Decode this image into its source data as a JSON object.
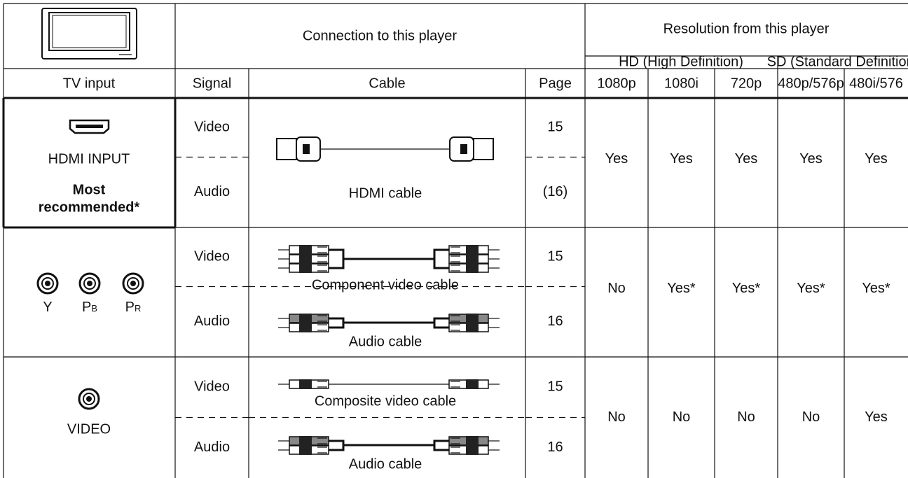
{
  "header": {
    "tv_input": "TV input",
    "connection": "Connection to this player",
    "resolution": "Resolution from this player",
    "hd": "HD (High Definition)",
    "sd": "SD (Standard Definition)",
    "columns": [
      "Signal",
      "Cable",
      "Page",
      "1080p",
      "1080i",
      "720p",
      "480p/576p",
      "480i/576"
    ]
  },
  "rows": [
    {
      "input": [
        "HDMI INPUT"
      ],
      "note": [
        "Most",
        "recommended*"
      ],
      "signals": [
        {
          "signal": "Video",
          "page": "15"
        },
        {
          "signal": "Audio",
          "page": "(16)"
        }
      ],
      "cables": [
        "HDMI cable"
      ],
      "resolution": [
        "Yes",
        "Yes",
        "Yes",
        "Yes",
        "Yes"
      ]
    },
    {
      "input": [
        {
          "main": "Y"
        },
        {
          "main": "P",
          "sub": "B"
        },
        {
          "main": "P",
          "sub": "R"
        }
      ],
      "signals": [
        {
          "signal": "Video",
          "page": "15"
        },
        {
          "signal": "Audio",
          "page": "16"
        }
      ],
      "cables": [
        "Component video cable",
        "Audio cable"
      ],
      "resolution": [
        "No",
        "Yes*",
        "Yes*",
        "Yes*",
        "Yes*"
      ]
    },
    {
      "input": [
        "VIDEO"
      ],
      "signals": [
        {
          "signal": "Video",
          "page": "15"
        },
        {
          "signal": "Audio",
          "page": "16"
        }
      ],
      "cables": [
        "Composite video cable",
        "Audio cable"
      ],
      "resolution": [
        "No",
        "No",
        "No",
        "No",
        "Yes"
      ]
    }
  ]
}
